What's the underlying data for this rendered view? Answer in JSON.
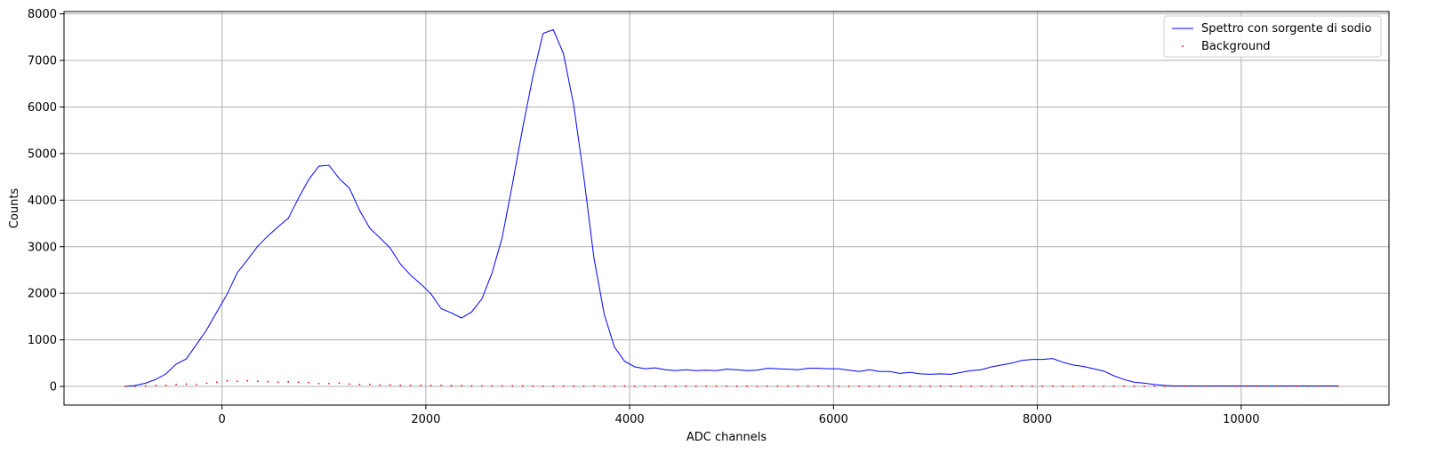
{
  "chart_data": {
    "type": "line",
    "xlabel": "ADC channels",
    "ylabel": "Counts",
    "xlim": [
      -1550,
      11450
    ],
    "ylim": [
      -400,
      8050
    ],
    "x_ticks": [
      0,
      2000,
      4000,
      6000,
      8000,
      10000
    ],
    "y_ticks": [
      0,
      1000,
      2000,
      3000,
      4000,
      5000,
      6000,
      7000,
      8000
    ],
    "grid": true,
    "legend_position": "upper right",
    "series": [
      {
        "name": "Spettro con sorgente di sodio",
        "kind": "line",
        "color": "#0000ff",
        "x": [
          -950,
          -850,
          -750,
          -650,
          -550,
          -450,
          -350,
          -250,
          -150,
          -50,
          50,
          150,
          250,
          350,
          450,
          550,
          650,
          750,
          850,
          950,
          1050,
          1150,
          1250,
          1350,
          1450,
          1550,
          1650,
          1750,
          1850,
          1950,
          2050,
          2150,
          2250,
          2350,
          2450,
          2550,
          2650,
          2750,
          2850,
          2950,
          3050,
          3150,
          3250,
          3350,
          3450,
          3550,
          3650,
          3750,
          3850,
          3950,
          4050,
          4150,
          4250,
          4350,
          4450,
          4550,
          4650,
          4750,
          4850,
          4950,
          5050,
          5150,
          5250,
          5350,
          5450,
          5550,
          5650,
          5750,
          5850,
          5950,
          6050,
          6150,
          6250,
          6350,
          6450,
          6550,
          6650,
          6750,
          6850,
          6950,
          7050,
          7150,
          7250,
          7350,
          7450,
          7550,
          7650,
          7750,
          7850,
          7950,
          8050,
          8150,
          8250,
          8350,
          8450,
          8550,
          8650,
          8750,
          8850,
          8950,
          9050,
          9150,
          9250,
          9350,
          9450,
          9550,
          9650,
          9750,
          9850,
          9950,
          10050,
          10150,
          10250,
          10350,
          10450,
          10550,
          10650,
          10750,
          10850,
          10950
        ],
        "y": [
          0,
          20,
          70,
          150,
          270,
          480,
          590,
          900,
          1220,
          1600,
          1980,
          2440,
          2720,
          3010,
          3230,
          3430,
          3610,
          4040,
          4440,
          4730,
          4750,
          4460,
          4260,
          3780,
          3400,
          3190,
          2970,
          2630,
          2390,
          2200,
          1990,
          1670,
          1580,
          1470,
          1600,
          1880,
          2440,
          3200,
          4350,
          5550,
          6650,
          7580,
          7660,
          7150,
          6050,
          4500,
          2750,
          1550,
          850,
          540,
          420,
          380,
          400,
          360,
          340,
          360,
          340,
          350,
          340,
          370,
          360,
          340,
          350,
          390,
          380,
          370,
          360,
          390,
          390,
          380,
          380,
          350,
          320,
          360,
          320,
          320,
          280,
          300,
          270,
          260,
          270,
          260,
          300,
          340,
          360,
          420,
          460,
          500,
          560,
          580,
          580,
          600,
          520,
          460,
          430,
          380,
          330,
          230,
          150,
          90,
          70,
          40,
          20,
          10,
          10,
          10,
          10,
          10,
          10,
          10,
          10,
          10,
          10,
          10,
          10,
          10,
          10,
          10,
          10,
          10
        ]
      },
      {
        "name": "Background",
        "kind": "scatter",
        "color": "#ff0000",
        "x": [
          -950,
          -850,
          -750,
          -650,
          -550,
          -450,
          -350,
          -250,
          -150,
          -50,
          50,
          150,
          250,
          350,
          450,
          550,
          650,
          750,
          850,
          950,
          1050,
          1150,
          1250,
          1350,
          1450,
          1550,
          1650,
          1750,
          1850,
          1950,
          2050,
          2150,
          2250,
          2350,
          2450,
          2550,
          2650,
          2750,
          2850,
          2950,
          3050,
          3150,
          3250,
          3350,
          3450,
          3550,
          3650,
          3750,
          3850,
          3950,
          4050,
          4150,
          4250,
          4350,
          4450,
          4550,
          4650,
          4750,
          4850,
          4950,
          5050,
          5150,
          5250,
          5350,
          5450,
          5550,
          5650,
          5750,
          5850,
          5950,
          6050,
          6150,
          6250,
          6350,
          6450,
          6550,
          6650,
          6750,
          6850,
          6950,
          7050,
          7150,
          7250,
          7350,
          7450,
          7550,
          7650,
          7750,
          7850,
          7950,
          8050,
          8150,
          8250,
          8350,
          8450,
          8550,
          8650,
          8750,
          8850,
          8950,
          9050,
          9150,
          9250,
          9350,
          9450,
          9550,
          9650,
          9750,
          9850,
          9950,
          10050,
          10150,
          10250,
          10350,
          10450,
          10550,
          10650,
          10750,
          10850,
          10950
        ],
        "y": [
          0,
          0,
          10,
          20,
          20,
          40,
          50,
          40,
          70,
          90,
          120,
          110,
          120,
          110,
          100,
          90,
          100,
          90,
          80,
          60,
          60,
          70,
          50,
          40,
          40,
          30,
          30,
          20,
          20,
          20,
          20,
          20,
          15,
          15,
          10,
          10,
          10,
          10,
          10,
          10,
          10,
          5,
          5,
          5,
          5,
          5,
          10,
          5,
          5,
          10,
          5,
          5,
          5,
          5,
          5,
          5,
          5,
          5,
          5,
          5,
          5,
          5,
          5,
          5,
          5,
          5,
          5,
          5,
          5,
          5,
          5,
          5,
          5,
          5,
          5,
          5,
          5,
          5,
          5,
          5,
          5,
          5,
          5,
          5,
          5,
          5,
          5,
          5,
          5,
          5,
          5,
          5,
          5,
          5,
          5,
          5,
          5,
          5,
          5,
          5,
          5,
          5,
          5,
          5,
          5,
          5,
          5,
          5,
          5,
          5,
          5,
          5,
          5,
          5,
          5,
          5,
          5,
          5,
          5,
          5
        ]
      }
    ]
  }
}
